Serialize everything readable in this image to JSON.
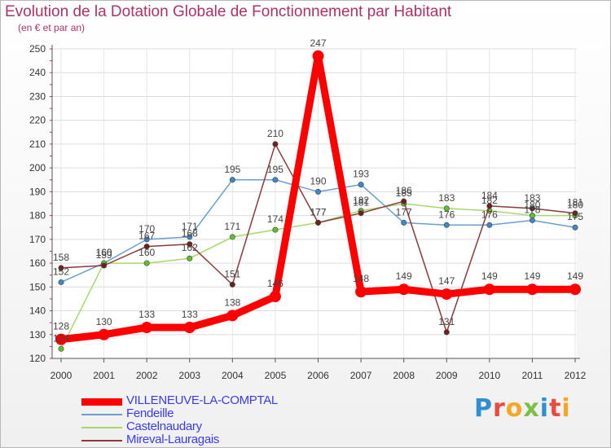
{
  "chart_data": {
    "type": "line",
    "title": "Evolution de la Dotation Globale de Fonctionnement par Habitant",
    "subtitle": "(en € et par an)",
    "xlabel": "",
    "ylabel": "",
    "categories": [
      "2000",
      "2001",
      "2002",
      "2003",
      "2004",
      "2005",
      "2006",
      "2007",
      "2008",
      "2009",
      "2010",
      "2011",
      "2012"
    ],
    "y_ticks": [
      "120",
      "130",
      "140",
      "150",
      "160",
      "170",
      "180",
      "190",
      "200",
      "210",
      "220",
      "230",
      "240",
      "250"
    ],
    "ylim": [
      120,
      250
    ],
    "grid": true,
    "legend_position": "bottom-left",
    "series": [
      {
        "name": "VILLENEUVE-LA-COMPTAL",
        "color": "#ff0000",
        "marker": "#ff0000",
        "emphasis": true,
        "values": [
          128,
          130,
          133,
          133,
          138,
          146,
          247,
          148,
          149,
          147,
          149,
          149,
          149
        ],
        "labels": [
          "128",
          "130",
          "133",
          "133",
          "138",
          "146",
          "247",
          "148",
          "149",
          "147",
          "149",
          "149",
          "149"
        ]
      },
      {
        "name": "Fendeille",
        "color": "#6a9fcf",
        "marker": "#3f88c8",
        "values": [
          152,
          160,
          170,
          171,
          195,
          195,
          190,
          193,
          177,
          176,
          176,
          178,
          175
        ],
        "labels": [
          "152",
          "160",
          "170",
          "171",
          "195",
          "195",
          "190",
          "193",
          "177",
          "176",
          "176",
          "178",
          "175"
        ]
      },
      {
        "name": "Castelnaudary",
        "color": "#a6d86e",
        "marker": "#5ec02e",
        "values": [
          124,
          160,
          160,
          162,
          171,
          174,
          177,
          182,
          185,
          183,
          182,
          180,
          180
        ],
        "labels": [
          "124",
          "160",
          "160",
          "162",
          "171",
          "174",
          "177",
          "182",
          "185",
          "183",
          "182",
          "180",
          "180"
        ]
      },
      {
        "name": "Mireval-Lauragais",
        "color": "#8b3a3a",
        "marker": "#6e1f1f",
        "values": [
          158,
          159,
          167,
          168,
          151,
          210,
          177,
          181,
          186,
          131,
          184,
          183,
          181
        ],
        "labels": [
          "158",
          "159",
          "167",
          "168",
          "151",
          "210",
          "177",
          "181",
          "186",
          "131",
          "184",
          "183",
          "181"
        ]
      }
    ]
  },
  "brand": {
    "letters": [
      "P",
      "r",
      "o",
      "x",
      "i",
      "t",
      "i"
    ],
    "colors": [
      "#2f8fd0",
      "#e94b3c",
      "#f5a623",
      "#7ac143",
      "#2f8fd0",
      "#e94b3c",
      "#f5a623"
    ]
  }
}
